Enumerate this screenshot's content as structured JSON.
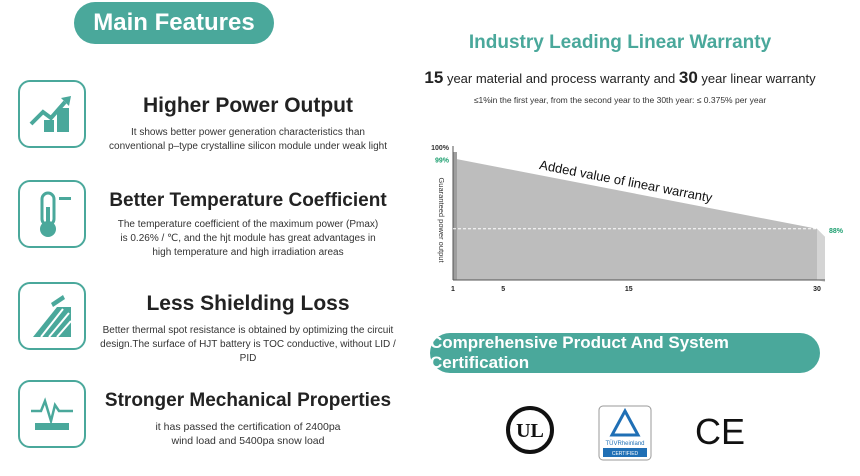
{
  "main_features_label": "Main Features",
  "features": [
    {
      "title": "Higher Power Output",
      "desc_lines": [
        "It shows better power generation characteristics than",
        "conventional p–type crystalline silicon module under weak light"
      ],
      "icon": "chart-growth-icon"
    },
    {
      "title": "Better Temperature Coefficient",
      "desc_lines": [
        "The temperature coefficient of the maximum power (Pmax)",
        "is 0.26% / ℃, and the hjt module has great advantages in",
        "high temperature and high irradiation areas"
      ],
      "icon": "thermometer-icon"
    },
    {
      "title": "Less Shielding Loss",
      "desc_lines": [
        "Better thermal spot resistance is obtained by optimizing the circuit",
        "design.The surface of HJT battery is TOC conductive, without LID / PID"
      ],
      "icon": "solar-panel-icon"
    },
    {
      "title": "Stronger Mechanical Properties",
      "desc_lines": [
        "it has passed the certification of 2400pa",
        "wind load and 5400pa snow load"
      ],
      "icon": "pulse-line-icon"
    }
  ],
  "warranty": {
    "title": "Industry Leading Linear Warranty",
    "years_material": "15",
    "material_text": " year material and process warranty and ",
    "years_linear": "30",
    "linear_text": " year linear warranty",
    "note": "≤1%in the first year, from the second year to the 30th year: ≤ 0.375% per year"
  },
  "chart_data": {
    "type": "area",
    "x_ticks": [
      "1",
      "5",
      "15",
      "30"
    ],
    "y_top_label": "100%",
    "start_label": "99%",
    "end_label": "88%",
    "ylabel": "Guaranteed power output",
    "annotation": "Added value of linear warranty",
    "series": [
      {
        "x": [
          1,
          30
        ],
        "y": [
          99,
          88
        ]
      }
    ],
    "ylim": [
      80,
      100
    ],
    "xlim": [
      1,
      30
    ],
    "accent": "#1a9e6e"
  },
  "certification_label": "Comprehensive Product And System Certification",
  "certs": {
    "ul": "UL",
    "tuv_top": "TÜVRheinland",
    "tuv_bottom": "CERTIFIED",
    "ce": "CE"
  },
  "colors": {
    "teal": "#4aa89b",
    "green": "#1a9e6e"
  }
}
